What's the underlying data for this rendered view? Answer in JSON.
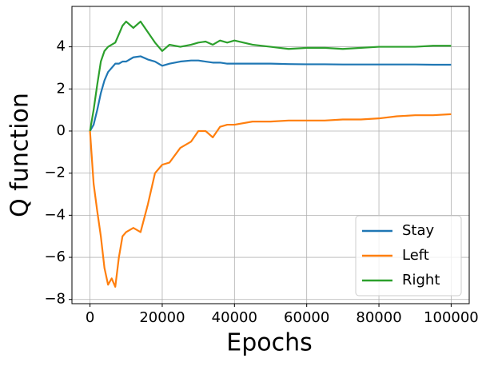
{
  "chart_data": {
    "type": "line",
    "x_label": "Epochs",
    "y_label": "Q function",
    "x": [
      0,
      1000,
      2000,
      3000,
      4000,
      5000,
      6000,
      7000,
      8000,
      9000,
      10000,
      12000,
      14000,
      16000,
      18000,
      20000,
      22000,
      25000,
      28000,
      30000,
      32000,
      34000,
      36000,
      38000,
      40000,
      45000,
      50000,
      55000,
      60000,
      65000,
      70000,
      75000,
      80000,
      85000,
      90000,
      95000,
      100000
    ],
    "series": [
      {
        "name": "Stay",
        "color": "#1f77b4",
        "values": [
          0,
          0.3,
          1.0,
          1.8,
          2.4,
          2.8,
          3.0,
          3.2,
          3.2,
          3.3,
          3.3,
          3.5,
          3.55,
          3.4,
          3.3,
          3.1,
          3.2,
          3.3,
          3.35,
          3.35,
          3.3,
          3.25,
          3.25,
          3.2,
          3.2,
          3.2,
          3.2,
          3.18,
          3.17,
          3.17,
          3.16,
          3.16,
          3.16,
          3.16,
          3.16,
          3.15,
          3.15
        ]
      },
      {
        "name": "Left",
        "color": "#ff7f0e",
        "values": [
          0,
          -2.5,
          -3.8,
          -5.0,
          -6.5,
          -7.3,
          -7.0,
          -7.4,
          -6.0,
          -5.0,
          -4.8,
          -4.6,
          -4.8,
          -3.5,
          -2.0,
          -1.6,
          -1.5,
          -0.8,
          -0.5,
          0.0,
          0.0,
          -0.3,
          0.2,
          0.3,
          0.3,
          0.45,
          0.45,
          0.5,
          0.5,
          0.5,
          0.55,
          0.55,
          0.6,
          0.7,
          0.75,
          0.75,
          0.8
        ]
      },
      {
        "name": "Right",
        "color": "#2ca02c",
        "values": [
          0,
          1.0,
          2.2,
          3.3,
          3.8,
          4.0,
          4.1,
          4.2,
          4.6,
          5.0,
          5.2,
          4.9,
          5.2,
          4.7,
          4.2,
          3.8,
          4.1,
          4.0,
          4.1,
          4.2,
          4.25,
          4.1,
          4.3,
          4.2,
          4.3,
          4.1,
          4.0,
          3.9,
          3.95,
          3.95,
          3.9,
          3.95,
          4.0,
          4.0,
          4.0,
          4.05,
          4.05
        ]
      }
    ],
    "xlim": [
      -5000,
      105000
    ],
    "xticks": [
      0,
      20000,
      40000,
      60000,
      80000,
      100000
    ],
    "ylim": [
      -8.2,
      5.92
    ],
    "yticks": [
      {
        "value": -8,
        "label": "−8"
      },
      {
        "value": -6,
        "label": "−6"
      },
      {
        "value": -4,
        "label": "−4"
      },
      {
        "value": -2,
        "label": "−2"
      },
      0,
      2,
      4
    ],
    "grid": true,
    "legend": "lower right"
  }
}
